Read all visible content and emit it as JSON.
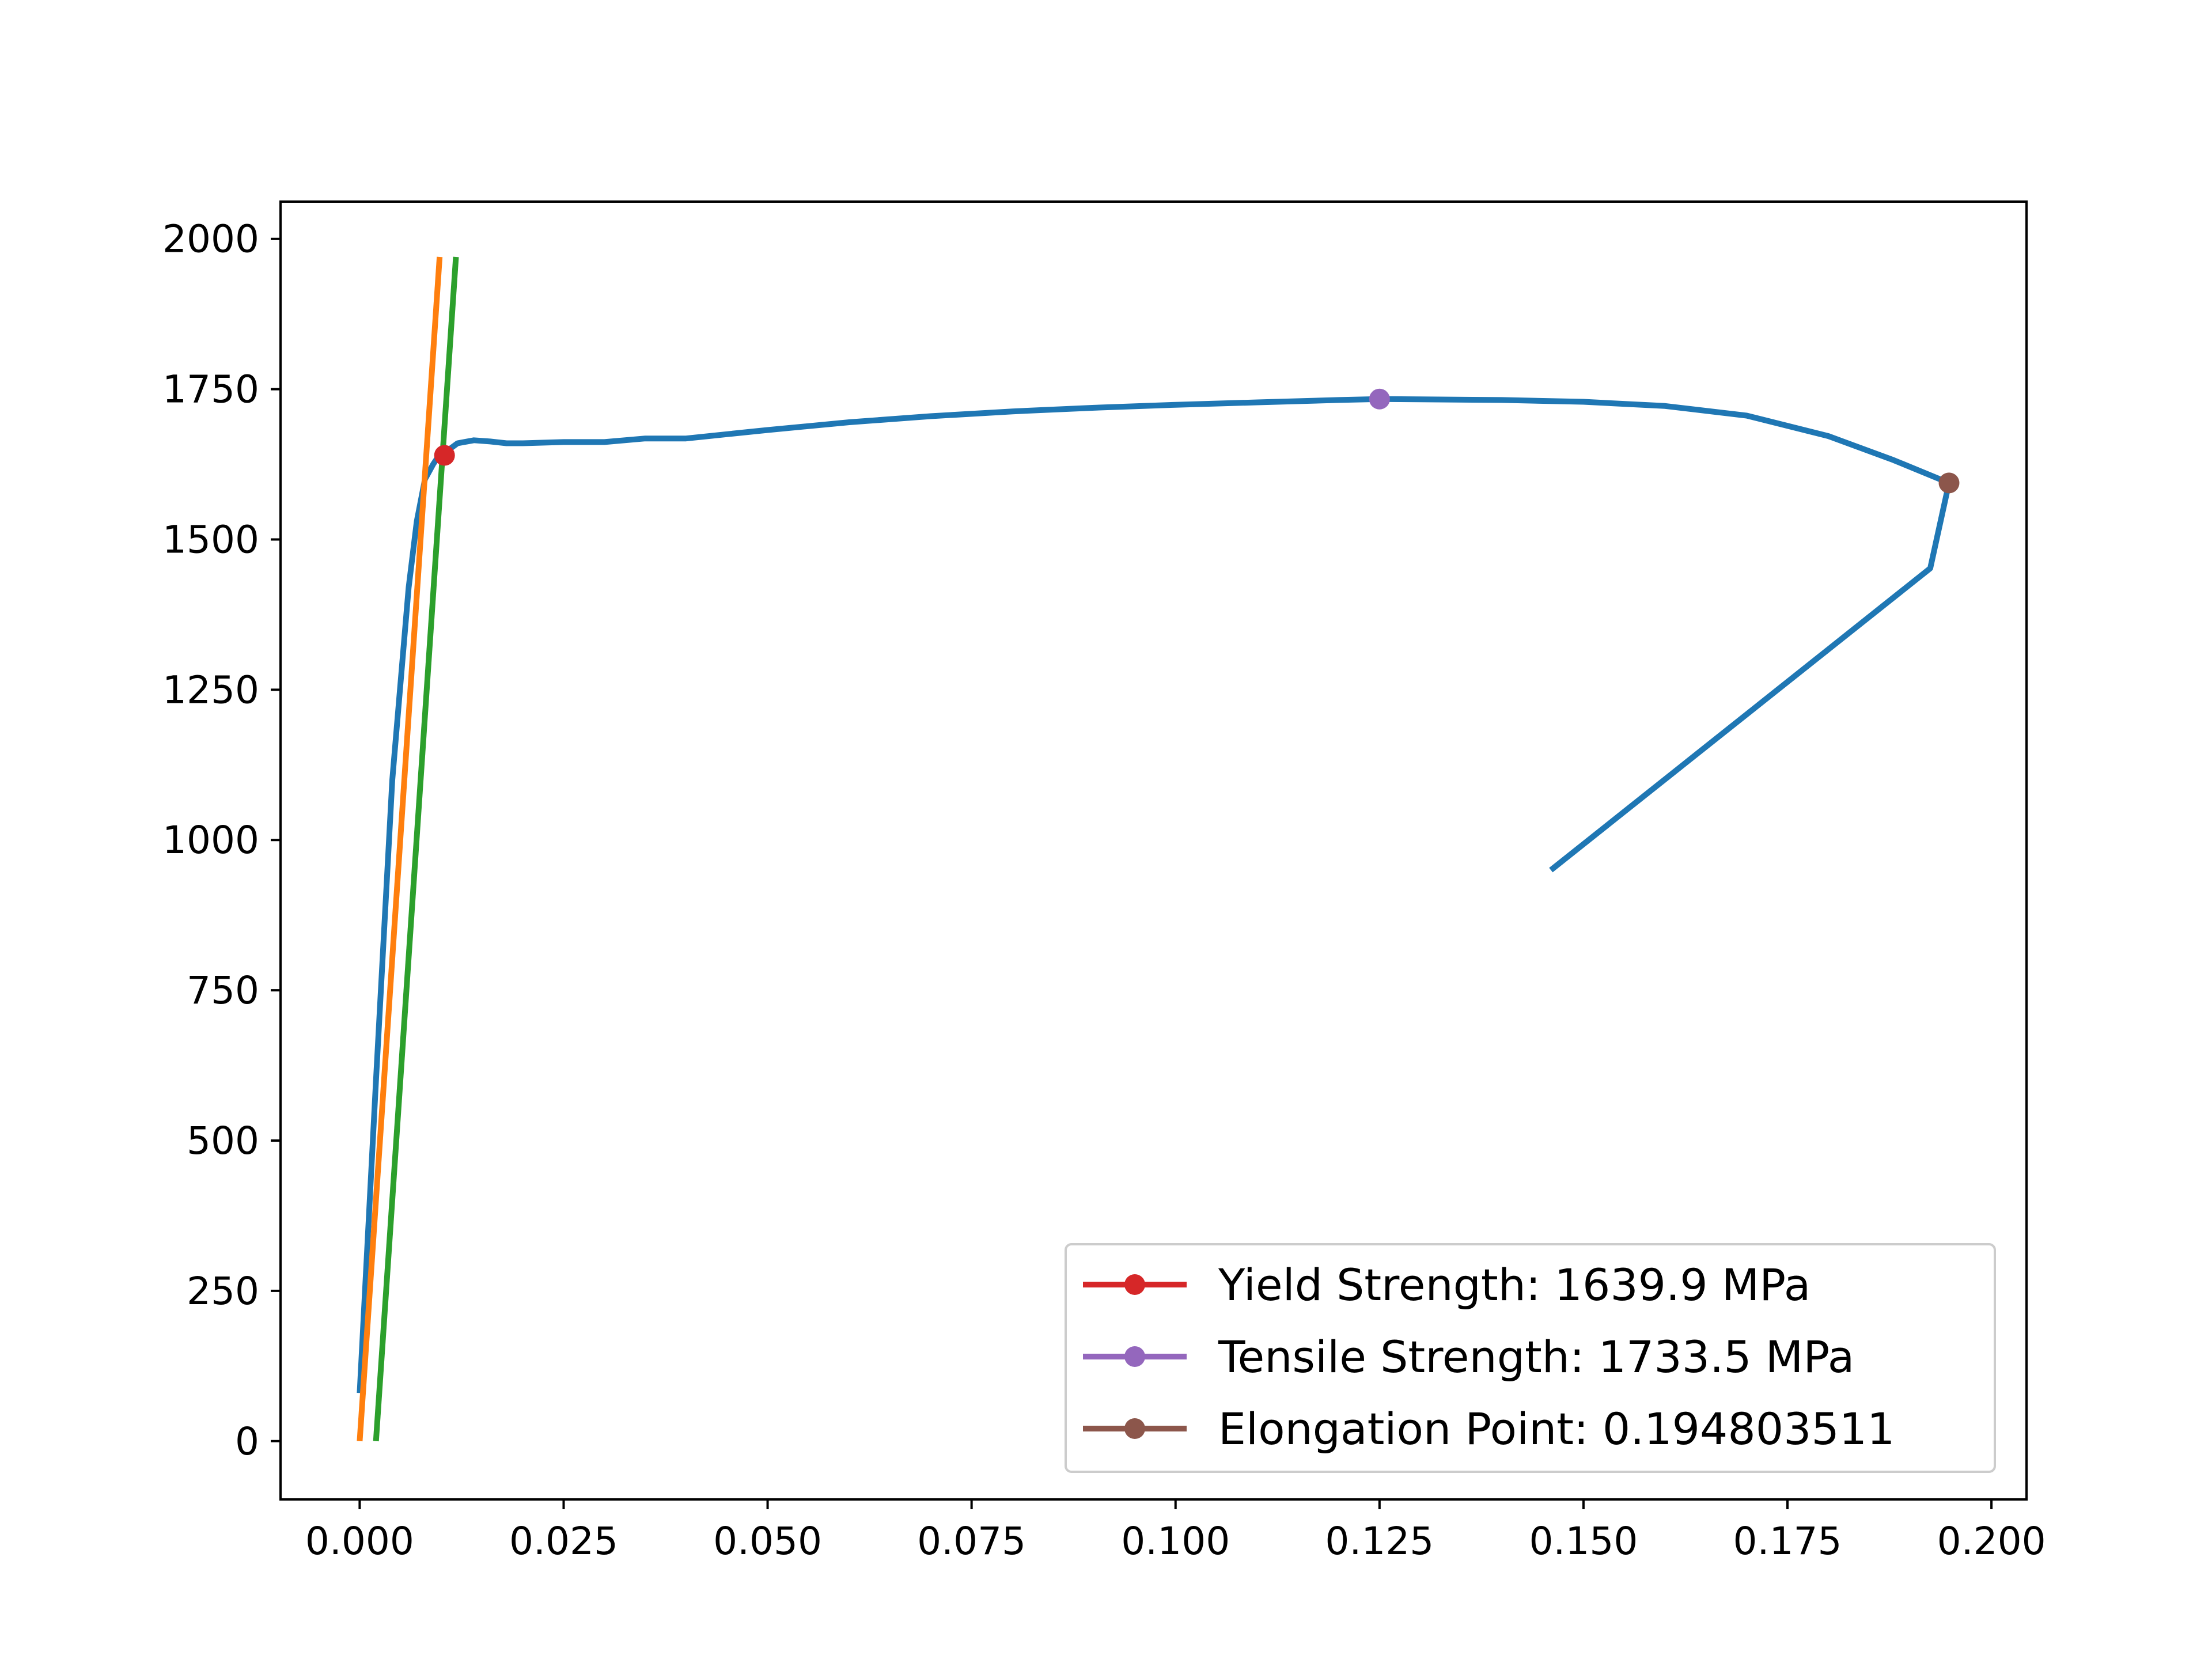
{
  "chart_data": {
    "type": "line",
    "title": "",
    "xlabel": "",
    "ylabel": "",
    "xlim": [
      -0.0097,
      0.2043
    ],
    "ylim": [
      -97,
      2062
    ],
    "xticks": [
      0.0,
      0.025,
      0.05,
      0.075,
      0.1,
      0.125,
      0.15,
      0.175,
      0.2
    ],
    "xtick_labels": [
      "0.000",
      "0.025",
      "0.050",
      "0.075",
      "0.100",
      "0.125",
      "0.150",
      "0.175",
      "0.200"
    ],
    "yticks": [
      0,
      250,
      500,
      750,
      1000,
      1250,
      1500,
      1750,
      2000
    ],
    "ytick_labels": [
      "0",
      "250",
      "500",
      "750",
      "1000",
      "1250",
      "1500",
      "1750",
      "2000"
    ],
    "grid": false,
    "legend_position": "lower-right",
    "series": [
      {
        "color": "#1f77b4",
        "x": [
          0.0,
          0.002,
          0.004,
          0.006,
          0.007,
          0.008,
          0.009,
          0.0095,
          0.01,
          0.011,
          0.012,
          0.014,
          0.016,
          0.018,
          0.02,
          0.025,
          0.03,
          0.035,
          0.04,
          0.045,
          0.05,
          0.06,
          0.07,
          0.08,
          0.09,
          0.1,
          0.11,
          0.12,
          0.125,
          0.13,
          0.14,
          0.15,
          0.16,
          0.17,
          0.18,
          0.188,
          0.1948,
          0.1925,
          0.146
        ],
        "y": [
          80,
          600,
          1100,
          1420,
          1530,
          1600,
          1625,
          1635,
          1640,
          1650,
          1660,
          1665,
          1663,
          1660,
          1660,
          1662,
          1662,
          1668,
          1668,
          1675,
          1682,
          1695,
          1705,
          1713,
          1719,
          1724,
          1728,
          1732,
          1733.5,
          1733,
          1732,
          1729,
          1722,
          1706,
          1672,
          1632,
          1594,
          1452,
          950
        ]
      },
      {
        "color": "#ff7f0e",
        "x": [
          0.0,
          0.0098
        ],
        "y": [
          0,
          1970
        ]
      },
      {
        "color": "#2ca02c",
        "x": [
          0.002,
          0.0118
        ],
        "y": [
          0,
          1970
        ]
      }
    ],
    "markers": [
      {
        "name": "Yield Strength: 1639.9 MPa",
        "x": 0.0104,
        "y": 1639.9,
        "color": "#d62728"
      },
      {
        "name": "Tensile Strength: 1733.5 MPa",
        "x": 0.125,
        "y": 1733.5,
        "color": "#9467bd"
      },
      {
        "name": "Elongation Point: 0.194803511",
        "x": 0.194803511,
        "y": 1594,
        "color": "#8c564b"
      }
    ]
  }
}
